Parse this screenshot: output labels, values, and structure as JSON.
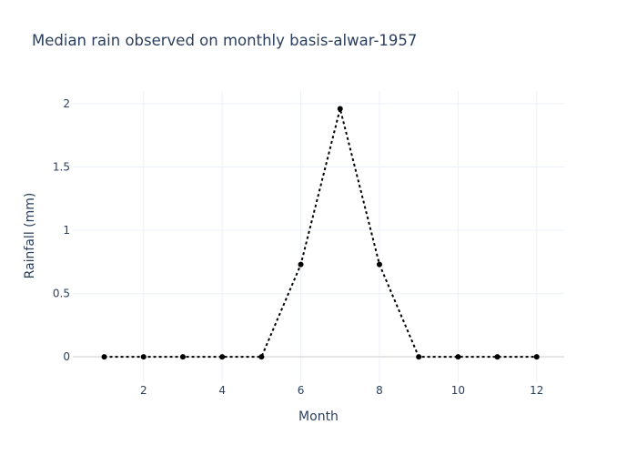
{
  "chart_data": {
    "type": "line",
    "title": "Median rain observed on monthly basis-alwar-1957",
    "xlabel": "Month",
    "ylabel": "Rainfall (mm)",
    "x": [
      1,
      2,
      3,
      4,
      5,
      6,
      7,
      8,
      9,
      10,
      11,
      12
    ],
    "series": [
      {
        "values": [
          0,
          0,
          0,
          0,
          0,
          0.73,
          1.96,
          0.73,
          0,
          0,
          0,
          0
        ]
      }
    ],
    "xlim": [
      0.2,
      12.7
    ],
    "ylim": [
      -0.2,
      2.1
    ],
    "xticks": [
      2,
      4,
      6,
      8,
      10,
      12
    ],
    "xtick_labels": [
      "2",
      "4",
      "6",
      "8",
      "10",
      "12"
    ],
    "yticks": [
      0,
      0.5,
      1,
      1.5,
      2
    ],
    "ytick_labels": [
      "0",
      "0.5",
      "1",
      "1.5",
      "2"
    ],
    "grid": true,
    "legend": false,
    "line_color": "#000000",
    "line_style": "dotted",
    "text_color": "#2a3f5f"
  }
}
